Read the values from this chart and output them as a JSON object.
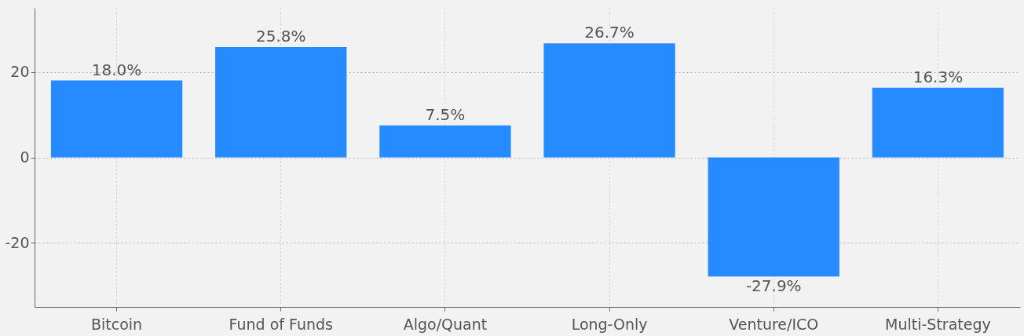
{
  "chart_data": {
    "type": "bar",
    "categories": [
      "Bitcoin",
      "Fund of Funds",
      "Algo/Quant",
      "Long-Only",
      "Venture/ICO",
      "Multi-Strategy"
    ],
    "values": [
      18.0,
      25.8,
      7.5,
      26.7,
      -27.9,
      16.3
    ],
    "value_labels": [
      "18.0%",
      "25.8%",
      "7.5%",
      "26.7%",
      "-27.9%",
      "16.3%"
    ],
    "color": "#268bff",
    "ylim": [
      -35,
      35
    ],
    "yticks": [
      -20,
      0,
      20
    ],
    "grid": true
  }
}
